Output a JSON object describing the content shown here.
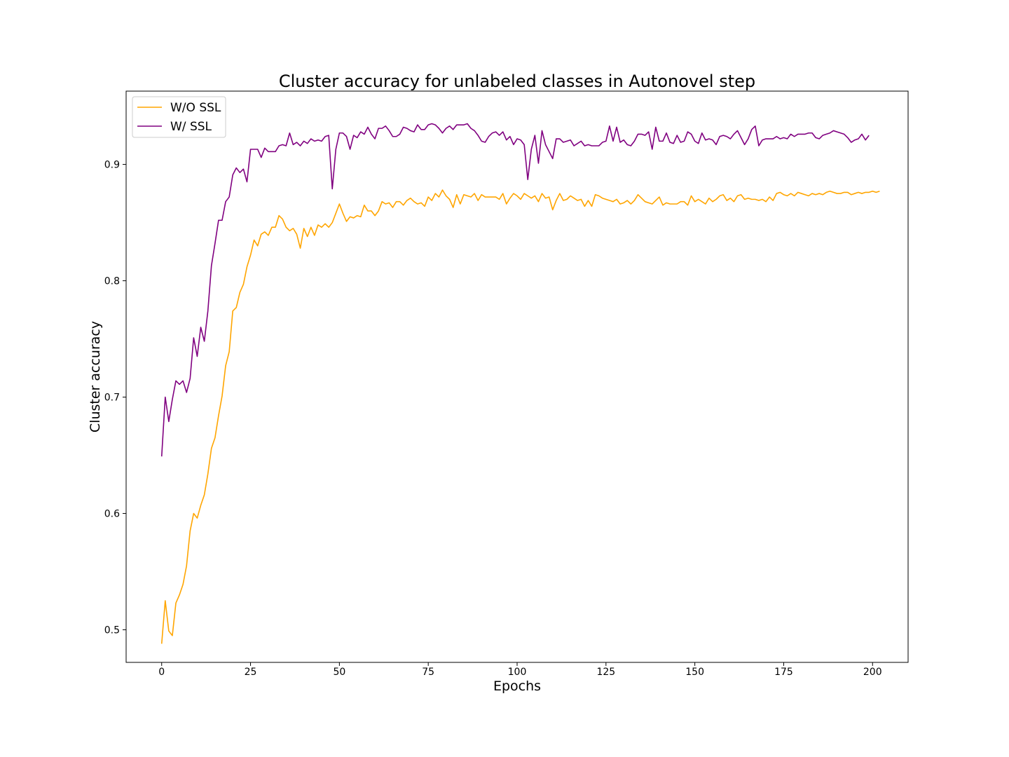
{
  "chart_data": {
    "type": "line",
    "title": "Cluster accuracy for unlabeled classes in Autonovel step",
    "xlabel": "Epochs",
    "ylabel": "Cluster accuracy",
    "xlim": [
      -10,
      210
    ],
    "ylim": [
      0.472,
      0.963
    ],
    "xticks": [
      0,
      25,
      50,
      75,
      100,
      125,
      150,
      175,
      200
    ],
    "yticks": [
      0.5,
      0.6,
      0.7,
      0.8,
      0.9
    ],
    "ytick_labels": [
      "0.5",
      "0.6",
      "0.7",
      "0.8",
      "0.9"
    ],
    "grid": false,
    "legend_position": "upper-left",
    "series": [
      {
        "name": "W/O SSL",
        "color": "#ffa500",
        "x_start": 0,
        "x_step": 1,
        "values": [
          0.488,
          0.525,
          0.499,
          0.495,
          0.523,
          0.53,
          0.539,
          0.555,
          0.585,
          0.6,
          0.596,
          0.607,
          0.616,
          0.634,
          0.656,
          0.665,
          0.684,
          0.701,
          0.727,
          0.739,
          0.774,
          0.777,
          0.79,
          0.797,
          0.812,
          0.822,
          0.835,
          0.83,
          0.84,
          0.842,
          0.839,
          0.846,
          0.846,
          0.856,
          0.853,
          0.846,
          0.843,
          0.845,
          0.84,
          0.828,
          0.845,
          0.838,
          0.846,
          0.839,
          0.848,
          0.846,
          0.849,
          0.846,
          0.85,
          0.858,
          0.866,
          0.858,
          0.851,
          0.855,
          0.854,
          0.856,
          0.855,
          0.865,
          0.86,
          0.86,
          0.856,
          0.86,
          0.868,
          0.866,
          0.867,
          0.863,
          0.868,
          0.868,
          0.865,
          0.869,
          0.871,
          0.868,
          0.866,
          0.867,
          0.864,
          0.872,
          0.869,
          0.875,
          0.872,
          0.878,
          0.873,
          0.87,
          0.863,
          0.874,
          0.866,
          0.874,
          0.873,
          0.872,
          0.875,
          0.869,
          0.874,
          0.872,
          0.872,
          0.872,
          0.872,
          0.87,
          0.875,
          0.866,
          0.871,
          0.875,
          0.873,
          0.87,
          0.875,
          0.873,
          0.871,
          0.873,
          0.868,
          0.875,
          0.871,
          0.872,
          0.861,
          0.869,
          0.875,
          0.869,
          0.87,
          0.873,
          0.871,
          0.869,
          0.87,
          0.864,
          0.869,
          0.864,
          0.874,
          0.873,
          0.871,
          0.87,
          0.869,
          0.868,
          0.87,
          0.866,
          0.867,
          0.869,
          0.866,
          0.869,
          0.874,
          0.871,
          0.868,
          0.867,
          0.866,
          0.869,
          0.872,
          0.865,
          0.867,
          0.866,
          0.866,
          0.866,
          0.868,
          0.868,
          0.865,
          0.873,
          0.868,
          0.87,
          0.868,
          0.866,
          0.871,
          0.868,
          0.87,
          0.873,
          0.874,
          0.869,
          0.871,
          0.868,
          0.873,
          0.874,
          0.87,
          0.871,
          0.87,
          0.87,
          0.869,
          0.87,
          0.868,
          0.872,
          0.869,
          0.875,
          0.876,
          0.874,
          0.873,
          0.875,
          0.873,
          0.876,
          0.875,
          0.874,
          0.873,
          0.875,
          0.874,
          0.875,
          0.874,
          0.876,
          0.877,
          0.876,
          0.875,
          0.875,
          0.876,
          0.876,
          0.874,
          0.875,
          0.876,
          0.875,
          0.876,
          0.876,
          0.877,
          0.876,
          0.877
        ]
      },
      {
        "name": "W/ SSL",
        "color": "#800080",
        "x_start": 0,
        "x_step": 1,
        "values": [
          0.649,
          0.7,
          0.679,
          0.698,
          0.714,
          0.711,
          0.714,
          0.704,
          0.716,
          0.751,
          0.735,
          0.76,
          0.748,
          0.774,
          0.813,
          0.832,
          0.852,
          0.852,
          0.868,
          0.872,
          0.891,
          0.897,
          0.893,
          0.896,
          0.885,
          0.913,
          0.913,
          0.913,
          0.906,
          0.914,
          0.911,
          0.911,
          0.911,
          0.916,
          0.917,
          0.916,
          0.927,
          0.917,
          0.919,
          0.916,
          0.92,
          0.918,
          0.922,
          0.92,
          0.921,
          0.92,
          0.924,
          0.925,
          0.879,
          0.913,
          0.927,
          0.927,
          0.924,
          0.913,
          0.925,
          0.923,
          0.928,
          0.926,
          0.932,
          0.926,
          0.922,
          0.931,
          0.931,
          0.933,
          0.929,
          0.924,
          0.924,
          0.926,
          0.932,
          0.931,
          0.929,
          0.928,
          0.934,
          0.93,
          0.93,
          0.934,
          0.935,
          0.934,
          0.931,
          0.927,
          0.931,
          0.933,
          0.93,
          0.934,
          0.934,
          0.934,
          0.935,
          0.931,
          0.929,
          0.925,
          0.92,
          0.919,
          0.924,
          0.927,
          0.928,
          0.925,
          0.928,
          0.921,
          0.924,
          0.917,
          0.922,
          0.921,
          0.917,
          0.887,
          0.913,
          0.925,
          0.901,
          0.929,
          0.917,
          0.911,
          0.905,
          0.922,
          0.922,
          0.919,
          0.92,
          0.921,
          0.916,
          0.918,
          0.92,
          0.916,
          0.917,
          0.916,
          0.916,
          0.916,
          0.919,
          0.92,
          0.933,
          0.92,
          0.932,
          0.919,
          0.921,
          0.917,
          0.916,
          0.92,
          0.926,
          0.926,
          0.925,
          0.928,
          0.913,
          0.932,
          0.92,
          0.92,
          0.927,
          0.919,
          0.918,
          0.925,
          0.919,
          0.92,
          0.928,
          0.926,
          0.92,
          0.918,
          0.927,
          0.921,
          0.922,
          0.921,
          0.917,
          0.924,
          0.925,
          0.924,
          0.922,
          0.926,
          0.929,
          0.923,
          0.917,
          0.922,
          0.93,
          0.933,
          0.916,
          0.921,
          0.922,
          0.922,
          0.922,
          0.924,
          0.922,
          0.923,
          0.922,
          0.926,
          0.924,
          0.926,
          0.926,
          0.926,
          0.927,
          0.927,
          0.923,
          0.922,
          0.925,
          0.926,
          0.927,
          0.929,
          0.928,
          0.927,
          0.926,
          0.923,
          0.919,
          0.921,
          0.922,
          0.926,
          0.921,
          0.925
        ]
      }
    ]
  }
}
